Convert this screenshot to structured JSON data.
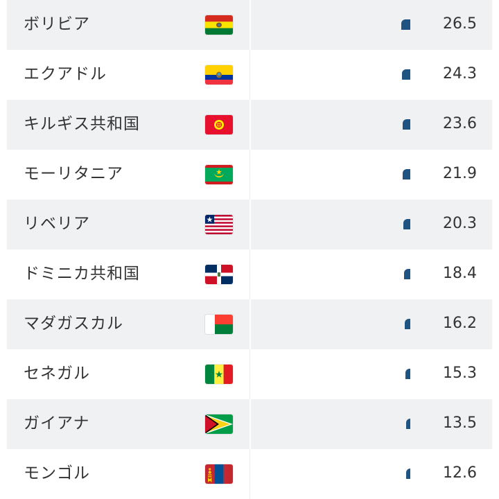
{
  "columns": {
    "country": "",
    "flag": "",
    "value": ""
  },
  "accent_color": "#1f5382",
  "rows": [
    {
      "name": "ボリビア",
      "flag_icon": "bolivia-flag-icon",
      "value": "26.5",
      "bar_value": 26.5
    },
    {
      "name": "エクアドル",
      "flag_icon": "ecuador-flag-icon",
      "value": "24.3",
      "bar_value": 24.3
    },
    {
      "name": "キルギス共和国",
      "flag_icon": "kyrgyzstan-flag-icon",
      "value": "23.6",
      "bar_value": 23.6
    },
    {
      "name": "モーリタニア",
      "flag_icon": "mauritania-flag-icon",
      "value": "21.9",
      "bar_value": 21.9
    },
    {
      "name": "リベリア",
      "flag_icon": "liberia-flag-icon",
      "value": "20.3",
      "bar_value": 20.3
    },
    {
      "name": "ドミニカ共和国",
      "flag_icon": "dominican-republic-flag-icon",
      "value": "18.4",
      "bar_value": 18.4
    },
    {
      "name": "マダガスカル",
      "flag_icon": "madagascar-flag-icon",
      "value": "16.2",
      "bar_value": 16.2
    },
    {
      "name": "セネガル",
      "flag_icon": "senegal-flag-icon",
      "value": "15.3",
      "bar_value": 15.3
    },
    {
      "name": "ガイアナ",
      "flag_icon": "guyana-flag-icon",
      "value": "13.5",
      "bar_value": 13.5
    },
    {
      "name": "モンゴル",
      "flag_icon": "mongolia-flag-icon",
      "value": "12.6",
      "bar_value": 12.6
    }
  ]
}
